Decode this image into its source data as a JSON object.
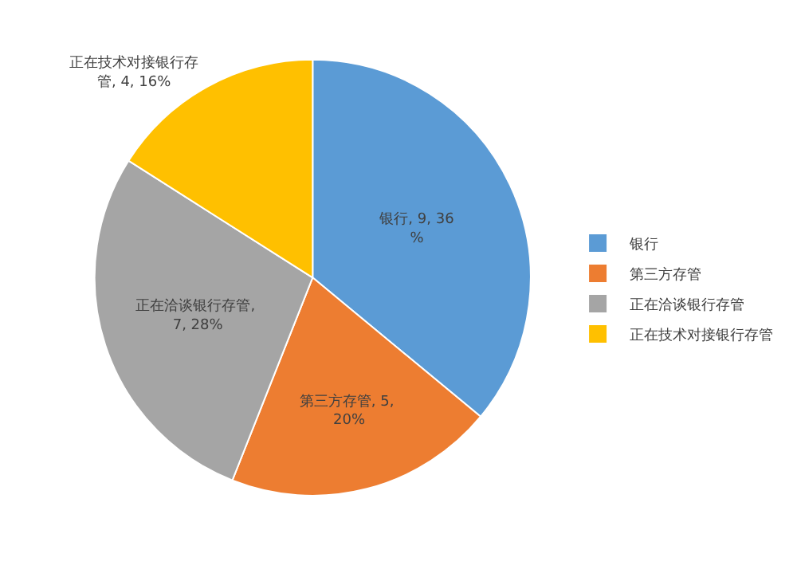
{
  "chart_data": {
    "type": "pie",
    "categories": [
      "银行",
      "第三方存管",
      "正在洽谈银行存管",
      "正在技术对接银行存管"
    ],
    "values": [
      9,
      5,
      7,
      4
    ],
    "colors": [
      "#5b9bd5",
      "#ed7d31",
      "#a5a5a5",
      "#ffc000"
    ],
    "value_labels": [
      "银行, 9, 36%",
      "第三方存管, 5, 20%",
      "正在洽谈银行存管, 7, 28%",
      "正在技术对接银行存管, 4, 16%"
    ],
    "legend": "right"
  }
}
